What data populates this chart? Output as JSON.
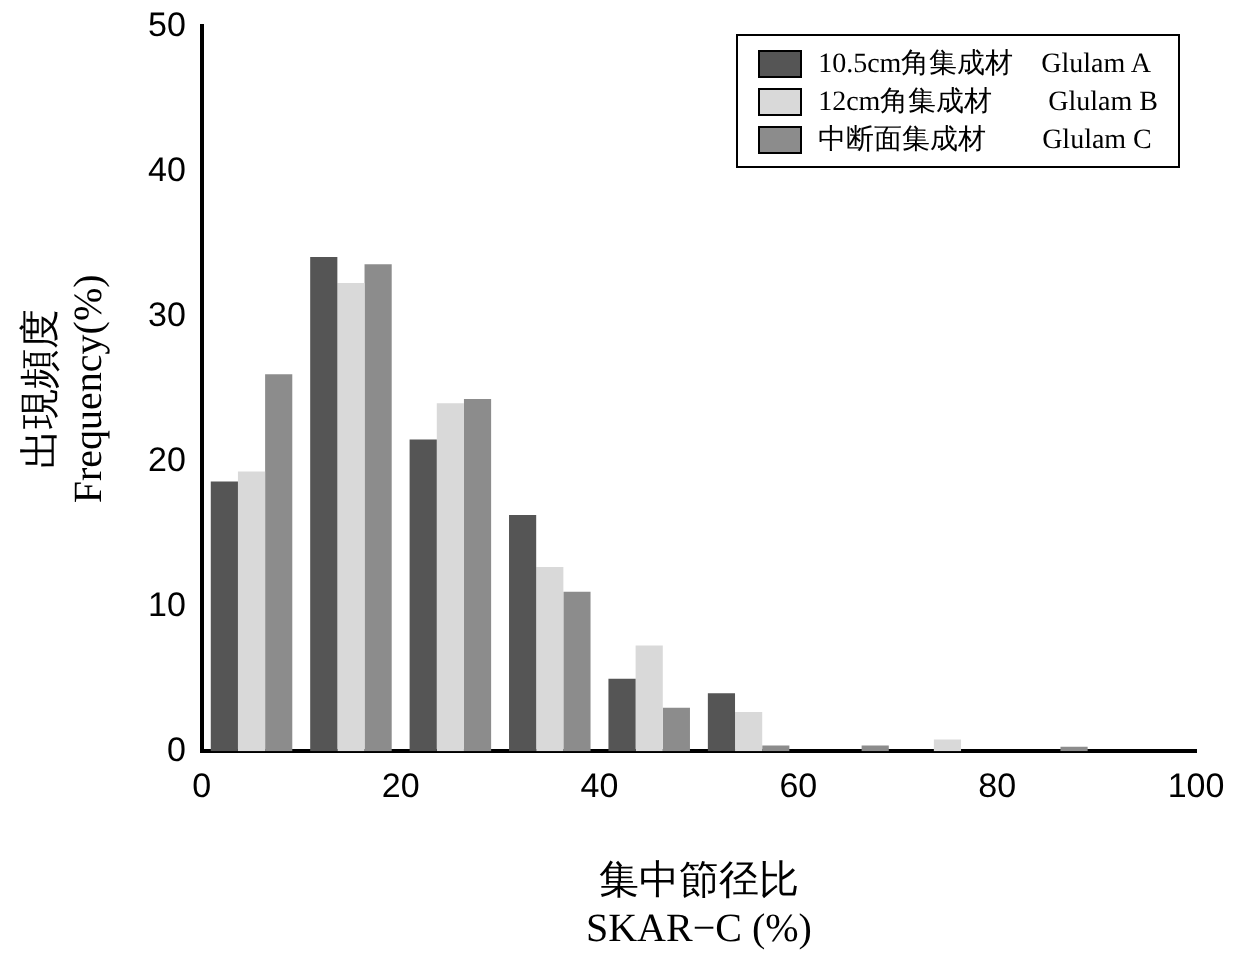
{
  "chart_data": {
    "type": "histogram",
    "xlabel": "集中節径比\nSKAR−C (%)",
    "ylabel": "出現頻度\nFrequency(%)",
    "bins": [
      0,
      10,
      20,
      30,
      40,
      50,
      60,
      70,
      80,
      90,
      100
    ],
    "series": [
      {
        "name": "10.5cm角集成材　Glulam A",
        "color": "#555555",
        "values": [
          18.6,
          34.1,
          21.5,
          16.3,
          5,
          4,
          0,
          0,
          0,
          0
        ]
      },
      {
        "name": "12cm角集成材　　Glulam B",
        "color": "#d9d9d9",
        "values": [
          19.3,
          32.3,
          24,
          12.7,
          7.3,
          2.7,
          0,
          0.8,
          0,
          0
        ]
      },
      {
        "name": "中断面集成材　　Glulam C",
        "color": "#8c8c8c",
        "values": [
          26,
          33.6,
          24.3,
          11,
          3,
          0.4,
          0.4,
          0,
          0.3,
          0
        ]
      }
    ],
    "xlim": [
      0,
      100
    ],
    "xticks": [
      0,
      20,
      40,
      60,
      80,
      100
    ],
    "ylim": [
      0,
      50
    ],
    "yticks": [
      0,
      10,
      20,
      30,
      40,
      50
    ],
    "grid": false,
    "legend": "top right"
  }
}
